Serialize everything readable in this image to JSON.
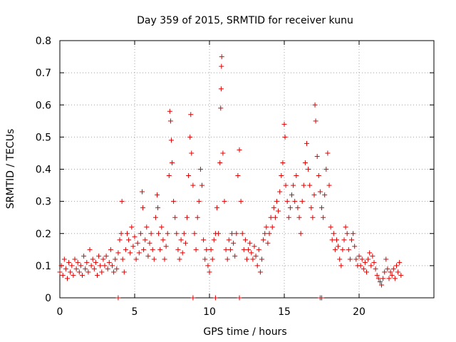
{
  "chart_data": {
    "type": "scatter",
    "title": "Day 359 of 2015, SRMTID for receiver kunu",
    "xlabel": "GPS time / hours",
    "ylabel": "SRMTID / TECUs",
    "xlim": [
      0,
      25
    ],
    "ylim": [
      0,
      0.8
    ],
    "xticks": [
      0,
      5,
      10,
      15,
      20
    ],
    "xtick_labels": [
      "0",
      "5",
      "10",
      "15",
      "20"
    ],
    "yticks": [
      0,
      0.1,
      0.2,
      0.3,
      0.4,
      0.5,
      0.6,
      0.7,
      0.8
    ],
    "ytick_labels": [
      "0",
      "0.1",
      "0.2",
      "0.3",
      "0.4",
      "0.5",
      "0.6",
      "0.7",
      "0.8"
    ],
    "grid": true,
    "marker": "+",
    "marker_color": "#e00000",
    "series": [
      {
        "name": "SRMTID",
        "points": [
          [
            0.0,
            0.08
          ],
          [
            0.1,
            0.1
          ],
          [
            0.2,
            0.07
          ],
          [
            0.3,
            0.12
          ],
          [
            0.4,
            0.09
          ],
          [
            0.5,
            0.06
          ],
          [
            0.6,
            0.11
          ],
          [
            0.7,
            0.08
          ],
          [
            0.8,
            0.1
          ],
          [
            0.9,
            0.07
          ],
          [
            1.0,
            0.12
          ],
          [
            1.1,
            0.09
          ],
          [
            1.2,
            0.11
          ],
          [
            1.3,
            0.08
          ],
          [
            1.4,
            0.1
          ],
          [
            1.5,
            0.07
          ],
          [
            1.6,
            0.13
          ],
          [
            1.7,
            0.09
          ],
          [
            1.8,
            0.11
          ],
          [
            1.9,
            0.08
          ],
          [
            2.0,
            0.15
          ],
          [
            2.1,
            0.1
          ],
          [
            2.2,
            0.12
          ],
          [
            2.3,
            0.09
          ],
          [
            2.4,
            0.11
          ],
          [
            2.5,
            0.07
          ],
          [
            2.6,
            0.13
          ],
          [
            2.7,
            0.1
          ],
          [
            2.8,
            0.08
          ],
          [
            2.9,
            0.12
          ],
          [
            3.0,
            0.1
          ],
          [
            3.1,
            0.13
          ],
          [
            3.2,
            0.09
          ],
          [
            3.3,
            0.11
          ],
          [
            3.4,
            0.15
          ],
          [
            3.5,
            0.1
          ],
          [
            3.6,
            0.08
          ],
          [
            3.7,
            0.12
          ],
          [
            3.8,
            0.09
          ],
          [
            3.9,
            0.14
          ],
          [
            4.0,
            0.18
          ],
          [
            4.1,
            0.2
          ],
          [
            4.15,
            0.3
          ],
          [
            4.2,
            0.12
          ],
          [
            4.3,
            0.08
          ],
          [
            4.4,
            0.15
          ],
          [
            4.5,
            0.2
          ],
          [
            4.6,
            0.18
          ],
          [
            4.7,
            0.14
          ],
          [
            4.8,
            0.22
          ],
          [
            4.9,
            0.16
          ],
          [
            5.0,
            0.19
          ],
          [
            5.1,
            0.12
          ],
          [
            5.2,
            0.17
          ],
          [
            5.3,
            0.14
          ],
          [
            5.4,
            0.2
          ],
          [
            5.5,
            0.33
          ],
          [
            5.55,
            0.28
          ],
          [
            5.6,
            0.15
          ],
          [
            5.7,
            0.18
          ],
          [
            5.8,
            0.22
          ],
          [
            5.9,
            0.13
          ],
          [
            6.0,
            0.17
          ],
          [
            6.1,
            0.2
          ],
          [
            6.2,
            0.15
          ],
          [
            6.3,
            0.12
          ],
          [
            6.4,
            0.25
          ],
          [
            6.5,
            0.32
          ],
          [
            6.55,
            0.28
          ],
          [
            6.6,
            0.2
          ],
          [
            6.7,
            0.15
          ],
          [
            6.8,
            0.22
          ],
          [
            6.9,
            0.18
          ],
          [
            7.0,
            0.12
          ],
          [
            7.1,
            0.16
          ],
          [
            7.2,
            0.2
          ],
          [
            7.3,
            0.38
          ],
          [
            7.35,
            0.58
          ],
          [
            7.4,
            0.55
          ],
          [
            7.45,
            0.49
          ],
          [
            7.5,
            0.42
          ],
          [
            7.6,
            0.3
          ],
          [
            7.7,
            0.25
          ],
          [
            7.8,
            0.2
          ],
          [
            7.9,
            0.15
          ],
          [
            8.0,
            0.12
          ],
          [
            8.1,
            0.18
          ],
          [
            8.2,
            0.14
          ],
          [
            8.3,
            0.2
          ],
          [
            8.4,
            0.17
          ],
          [
            8.5,
            0.25
          ],
          [
            8.6,
            0.38
          ],
          [
            8.7,
            0.5
          ],
          [
            8.75,
            0.57
          ],
          [
            8.8,
            0.45
          ],
          [
            8.9,
            0.35
          ],
          [
            9.0,
            0.2
          ],
          [
            9.1,
            0.15
          ],
          [
            9.2,
            0.25
          ],
          [
            9.3,
            0.3
          ],
          [
            9.4,
            0.4
          ],
          [
            9.5,
            0.35
          ],
          [
            9.6,
            0.18
          ],
          [
            9.7,
            0.12
          ],
          [
            9.8,
            0.15
          ],
          [
            9.9,
            0.1
          ],
          [
            10.0,
            0.08
          ],
          [
            10.1,
            0.15
          ],
          [
            10.2,
            0.12
          ],
          [
            10.3,
            0.18
          ],
          [
            10.4,
            0.2
          ],
          [
            10.5,
            0.28
          ],
          [
            10.6,
            0.2
          ],
          [
            10.7,
            0.42
          ],
          [
            10.75,
            0.59
          ],
          [
            10.78,
            0.65
          ],
          [
            10.8,
            0.72
          ],
          [
            10.82,
            0.75
          ],
          [
            10.9,
            0.45
          ],
          [
            11.0,
            0.3
          ],
          [
            11.1,
            0.15
          ],
          [
            11.2,
            0.12
          ],
          [
            11.3,
            0.18
          ],
          [
            11.4,
            0.15
          ],
          [
            11.5,
            0.2
          ],
          [
            11.6,
            0.17
          ],
          [
            11.7,
            0.13
          ],
          [
            11.8,
            0.2
          ],
          [
            11.9,
            0.38
          ],
          [
            12.0,
            0.46
          ],
          [
            12.1,
            0.3
          ],
          [
            12.2,
            0.2
          ],
          [
            12.3,
            0.15
          ],
          [
            12.4,
            0.18
          ],
          [
            12.5,
            0.12
          ],
          [
            12.6,
            0.15
          ],
          [
            12.7,
            0.17
          ],
          [
            12.8,
            0.14
          ],
          [
            12.9,
            0.12
          ],
          [
            13.0,
            0.16
          ],
          [
            13.1,
            0.13
          ],
          [
            13.2,
            0.1
          ],
          [
            13.3,
            0.15
          ],
          [
            13.4,
            0.08
          ],
          [
            13.5,
            0.12
          ],
          [
            13.6,
            0.18
          ],
          [
            13.7,
            0.2
          ],
          [
            13.8,
            0.22
          ],
          [
            13.9,
            0.17
          ],
          [
            14.0,
            0.2
          ],
          [
            14.1,
            0.25
          ],
          [
            14.2,
            0.22
          ],
          [
            14.3,
            0.28
          ],
          [
            14.4,
            0.25
          ],
          [
            14.5,
            0.3
          ],
          [
            14.6,
            0.27
          ],
          [
            14.7,
            0.33
          ],
          [
            14.8,
            0.38
          ],
          [
            14.9,
            0.42
          ],
          [
            15.0,
            0.54
          ],
          [
            15.05,
            0.5
          ],
          [
            15.1,
            0.35
          ],
          [
            15.2,
            0.3
          ],
          [
            15.3,
            0.25
          ],
          [
            15.4,
            0.28
          ],
          [
            15.5,
            0.32
          ],
          [
            15.6,
            0.35
          ],
          [
            15.7,
            0.3
          ],
          [
            15.8,
            0.38
          ],
          [
            15.9,
            0.28
          ],
          [
            16.0,
            0.25
          ],
          [
            16.1,
            0.2
          ],
          [
            16.2,
            0.3
          ],
          [
            16.3,
            0.35
          ],
          [
            16.4,
            0.42
          ],
          [
            16.5,
            0.48
          ],
          [
            16.6,
            0.4
          ],
          [
            16.7,
            0.35
          ],
          [
            16.8,
            0.28
          ],
          [
            16.9,
            0.25
          ],
          [
            17.0,
            0.32
          ],
          [
            17.05,
            0.6
          ],
          [
            17.1,
            0.55
          ],
          [
            17.2,
            0.44
          ],
          [
            17.3,
            0.38
          ],
          [
            17.4,
            0.33
          ],
          [
            17.5,
            0.28
          ],
          [
            17.6,
            0.25
          ],
          [
            17.7,
            0.32
          ],
          [
            17.8,
            0.4
          ],
          [
            17.9,
            0.45
          ],
          [
            18.0,
            0.35
          ],
          [
            18.1,
            0.22
          ],
          [
            18.2,
            0.18
          ],
          [
            18.3,
            0.2
          ],
          [
            18.4,
            0.15
          ],
          [
            18.5,
            0.18
          ],
          [
            18.6,
            0.16
          ],
          [
            18.7,
            0.12
          ],
          [
            18.8,
            0.1
          ],
          [
            18.9,
            0.15
          ],
          [
            19.0,
            0.18
          ],
          [
            19.1,
            0.22
          ],
          [
            19.2,
            0.2
          ],
          [
            19.3,
            0.15
          ],
          [
            19.4,
            0.12
          ],
          [
            19.5,
            0.18
          ],
          [
            19.6,
            0.2
          ],
          [
            19.7,
            0.16
          ],
          [
            19.8,
            0.12
          ],
          [
            19.9,
            0.1
          ],
          [
            20.0,
            0.13
          ],
          [
            20.1,
            0.1
          ],
          [
            20.2,
            0.12
          ],
          [
            20.3,
            0.09
          ],
          [
            20.4,
            0.11
          ],
          [
            20.5,
            0.08
          ],
          [
            20.6,
            0.12
          ],
          [
            20.7,
            0.14
          ],
          [
            20.8,
            0.1
          ],
          [
            20.9,
            0.13
          ],
          [
            21.0,
            0.11
          ],
          [
            21.1,
            0.09
          ],
          [
            21.2,
            0.07
          ],
          [
            21.3,
            0.06
          ],
          [
            21.4,
            0.05
          ],
          [
            21.5,
            0.04
          ],
          [
            21.6,
            0.06
          ],
          [
            21.7,
            0.08
          ],
          [
            21.8,
            0.12
          ],
          [
            21.9,
            0.09
          ],
          [
            22.0,
            0.06
          ],
          [
            22.1,
            0.08
          ],
          [
            22.2,
            0.07
          ],
          [
            22.3,
            0.09
          ],
          [
            22.4,
            0.06
          ],
          [
            22.5,
            0.1
          ],
          [
            22.6,
            0.08
          ],
          [
            22.7,
            0.11
          ],
          [
            22.8,
            0.07
          ],
          [
            3.9,
            0.0
          ],
          [
            8.9,
            0.0
          ],
          [
            10.4,
            0.0
          ],
          [
            12.0,
            0.0
          ],
          [
            17.4,
            0.0
          ],
          [
            17.5,
            0.0
          ]
        ]
      }
    ]
  }
}
